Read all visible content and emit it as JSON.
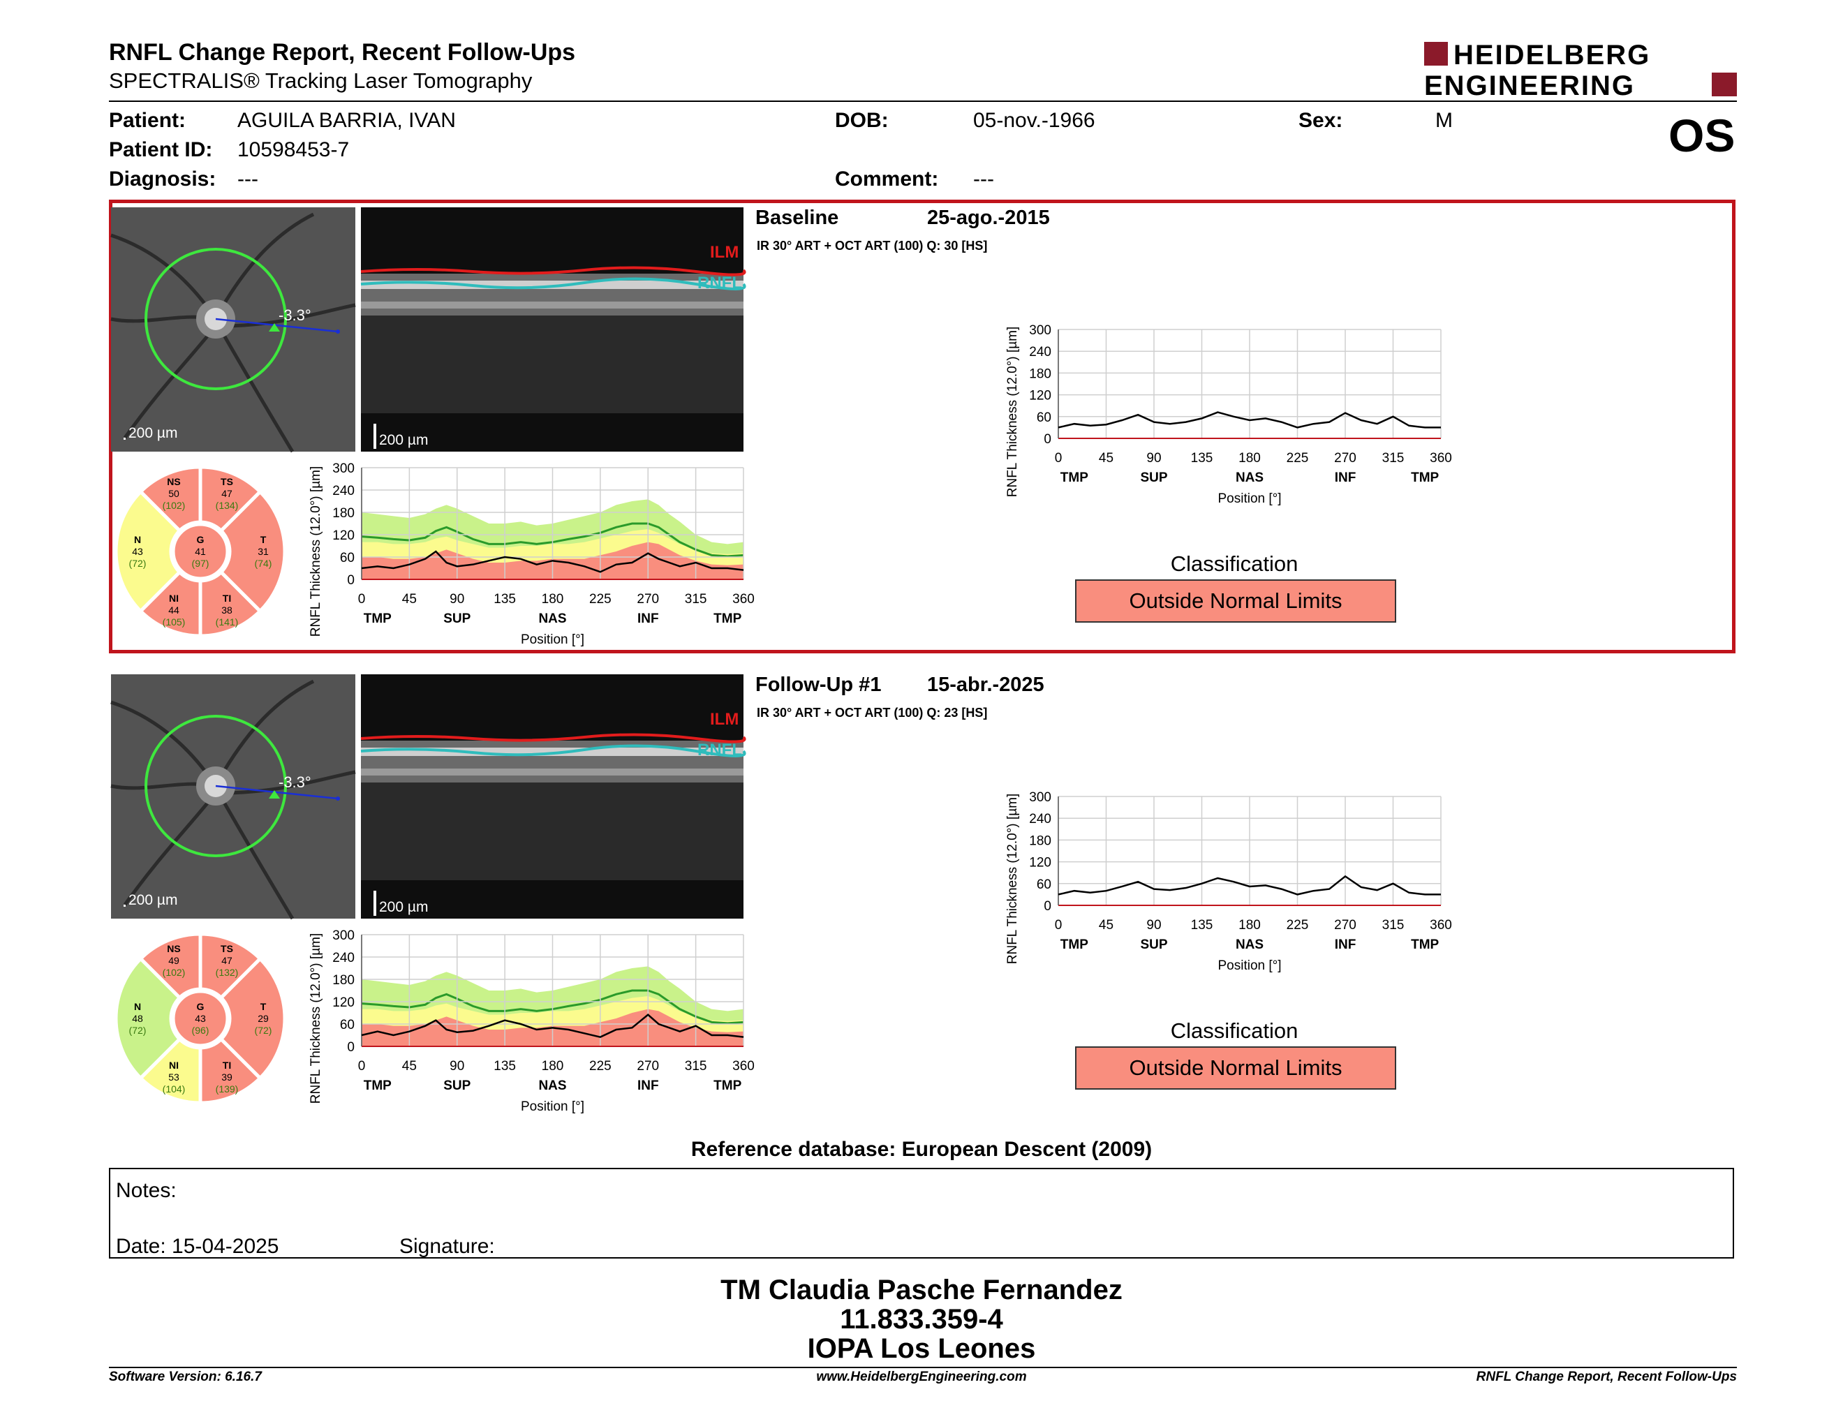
{
  "header": {
    "title": "RNFL Change Report, Recent Follow-Ups",
    "subtitle": "SPECTRALIS® Tracking Laser Tomography",
    "logo_line1": "HEIDELBERG",
    "logo_line2": "ENGINEERING",
    "brand_color": "#8b1a2a"
  },
  "patient": {
    "patient_label": "Patient:",
    "patient_value": "AGUILA BARRIA, IVAN",
    "id_label": "Patient ID:",
    "id_value": "10598453-7",
    "diagnosis_label": "Diagnosis:",
    "diagnosis_value": "---",
    "dob_label": "DOB:",
    "dob_value": "05-nov.-1966",
    "comment_label": "Comment:",
    "comment_value": "---",
    "sex_label": "Sex:",
    "sex_value": "M",
    "eye": "OS"
  },
  "common": {
    "scale_label": "200 µm",
    "angle_label": "-3.3°",
    "ilm_label": "ILM",
    "rnfl_label": "RNFL",
    "y_axis_label": "RNFL Thickness (12.0°) [µm]",
    "x_axis_label": "Position [°]",
    "y_ticks": [
      "300",
      "240",
      "180",
      "120",
      "60",
      "0"
    ],
    "x_ticks": [
      "0",
      "45",
      "90",
      "135",
      "180",
      "225",
      "270",
      "315",
      "360"
    ],
    "x_regions": [
      "TMP",
      "SUP",
      "NAS",
      "INF",
      "TMP"
    ],
    "classification_title": "Classification",
    "colors": {
      "outside": "#f98e7e",
      "borderline": "#fbfb8e",
      "normal": "#c9f28a",
      "frame": "#c0141c"
    }
  },
  "baseline": {
    "label": "Baseline",
    "date": "25-ago.-2015",
    "info": "IR 30° ART + OCT ART (100) Q: 30 [HS]",
    "classification": "Outside Normal Limits",
    "sectors": {
      "NS": {
        "name": "NS",
        "value": "50",
        "ref": "(102)",
        "status": "outside"
      },
      "TS": {
        "name": "TS",
        "value": "47",
        "ref": "(134)",
        "status": "outside"
      },
      "N": {
        "name": "N",
        "value": "43",
        "ref": "(72)",
        "status": "borderline"
      },
      "G": {
        "name": "G",
        "value": "41",
        "ref": "(97)",
        "status": "outside"
      },
      "T": {
        "name": "T",
        "value": "31",
        "ref": "(74)",
        "status": "outside"
      },
      "NI": {
        "name": "NI",
        "value": "44",
        "ref": "(105)",
        "status": "outside"
      },
      "TI": {
        "name": "TI",
        "value": "38",
        "ref": "(141)",
        "status": "outside"
      }
    }
  },
  "followup": {
    "label": "Follow-Up #1",
    "date": "15-abr.-2025",
    "info": "IR 30° ART + OCT ART (100) Q: 23 [HS]",
    "classification": "Outside Normal Limits",
    "sectors": {
      "NS": {
        "name": "NS",
        "value": "49",
        "ref": "(102)",
        "status": "outside"
      },
      "TS": {
        "name": "TS",
        "value": "47",
        "ref": "(132)",
        "status": "outside"
      },
      "N": {
        "name": "N",
        "value": "48",
        "ref": "(72)",
        "status": "normal"
      },
      "G": {
        "name": "G",
        "value": "43",
        "ref": "(96)",
        "status": "outside"
      },
      "T": {
        "name": "T",
        "value": "29",
        "ref": "(72)",
        "status": "outside"
      },
      "NI": {
        "name": "NI",
        "value": "53",
        "ref": "(104)",
        "status": "borderline"
      },
      "TI": {
        "name": "TI",
        "value": "39",
        "ref": "(139)",
        "status": "outside"
      }
    }
  },
  "chart_data": [
    {
      "type": "line",
      "title": "",
      "xlabel": "Position [°]",
      "ylabel": "RNFL Thickness (12.0°) [µm]",
      "xlim": [
        0,
        360
      ],
      "ylim": [
        0,
        300
      ],
      "x": [
        0,
        15,
        30,
        45,
        60,
        70,
        80,
        90,
        105,
        120,
        135,
        150,
        165,
        180,
        195,
        210,
        225,
        240,
        255,
        270,
        280,
        290,
        300,
        315,
        330,
        345,
        360
      ],
      "series": [
        {
          "name": "",
          "values": [
            30,
            35,
            30,
            40,
            55,
            75,
            45,
            35,
            40,
            50,
            60,
            55,
            40,
            50,
            45,
            35,
            20,
            40,
            45,
            70,
            55,
            45,
            35,
            45,
            30,
            30,
            25
          ]
        }
      ]
    },
    {
      "type": "line",
      "title": "",
      "xlabel": "Position [°]",
      "ylabel": "RNFL Thickness (12.0°) [µm]",
      "xlim": [
        0,
        360
      ],
      "ylim": [
        0,
        300
      ],
      "x": [
        0,
        15,
        30,
        45,
        60,
        70,
        80,
        90,
        105,
        120,
        135,
        150,
        165,
        180,
        195,
        210,
        225,
        240,
        255,
        270,
        280,
        290,
        300,
        315,
        330,
        345,
        360
      ],
      "series": [
        {
          "name": "",
          "values": [
            30,
            40,
            30,
            40,
            55,
            70,
            45,
            38,
            42,
            55,
            70,
            60,
            45,
            50,
            45,
            35,
            25,
            45,
            50,
            85,
            60,
            50,
            40,
            55,
            30,
            30,
            25
          ]
        }
      ]
    },
    {
      "type": "line",
      "title": "",
      "xlabel": "Position [°]",
      "ylabel": "RNFL Thickness (12.0°) [µm]",
      "xlim": [
        0,
        360
      ],
      "ylim": [
        0,
        300
      ],
      "x": [
        0,
        15,
        30,
        45,
        60,
        75,
        90,
        105,
        120,
        135,
        150,
        165,
        180,
        195,
        210,
        225,
        240,
        255,
        270,
        285,
        300,
        315,
        330,
        345,
        360
      ],
      "series": [
        {
          "name": "",
          "values": [
            30,
            40,
            35,
            38,
            50,
            65,
            45,
            40,
            45,
            55,
            72,
            60,
            50,
            55,
            45,
            30,
            40,
            45,
            70,
            50,
            40,
            60,
            35,
            30,
            30
          ]
        }
      ]
    },
    {
      "type": "line",
      "title": "",
      "xlabel": "Position [°]",
      "ylabel": "RNFL Thickness (12.0°) [µm]",
      "xlim": [
        0,
        360
      ],
      "ylim": [
        0,
        300
      ],
      "x": [
        0,
        15,
        30,
        45,
        60,
        75,
        90,
        105,
        120,
        135,
        150,
        165,
        180,
        195,
        210,
        225,
        240,
        255,
        270,
        285,
        300,
        315,
        330,
        345,
        360
      ],
      "series": [
        {
          "name": "",
          "values": [
            30,
            40,
            35,
            40,
            52,
            65,
            45,
            42,
            48,
            60,
            75,
            65,
            52,
            55,
            45,
            30,
            40,
            45,
            80,
            50,
            42,
            60,
            35,
            30,
            30
          ]
        }
      ]
    }
  ],
  "footer": {
    "reference": "Reference database: European Descent (2009)",
    "notes_label": "Notes:",
    "date_label": "Date: 15-04-2025",
    "signature_label": "Signature:",
    "sig_name": "TM Claudia Pasche Fernandez",
    "sig_id": "11.833.359-4",
    "sig_org": "IOPA Los Leones",
    "software": "Software Version: 6.16.7",
    "website": "www.HeidelbergEngineering.com",
    "report_name": "RNFL Change Report, Recent Follow-Ups"
  }
}
